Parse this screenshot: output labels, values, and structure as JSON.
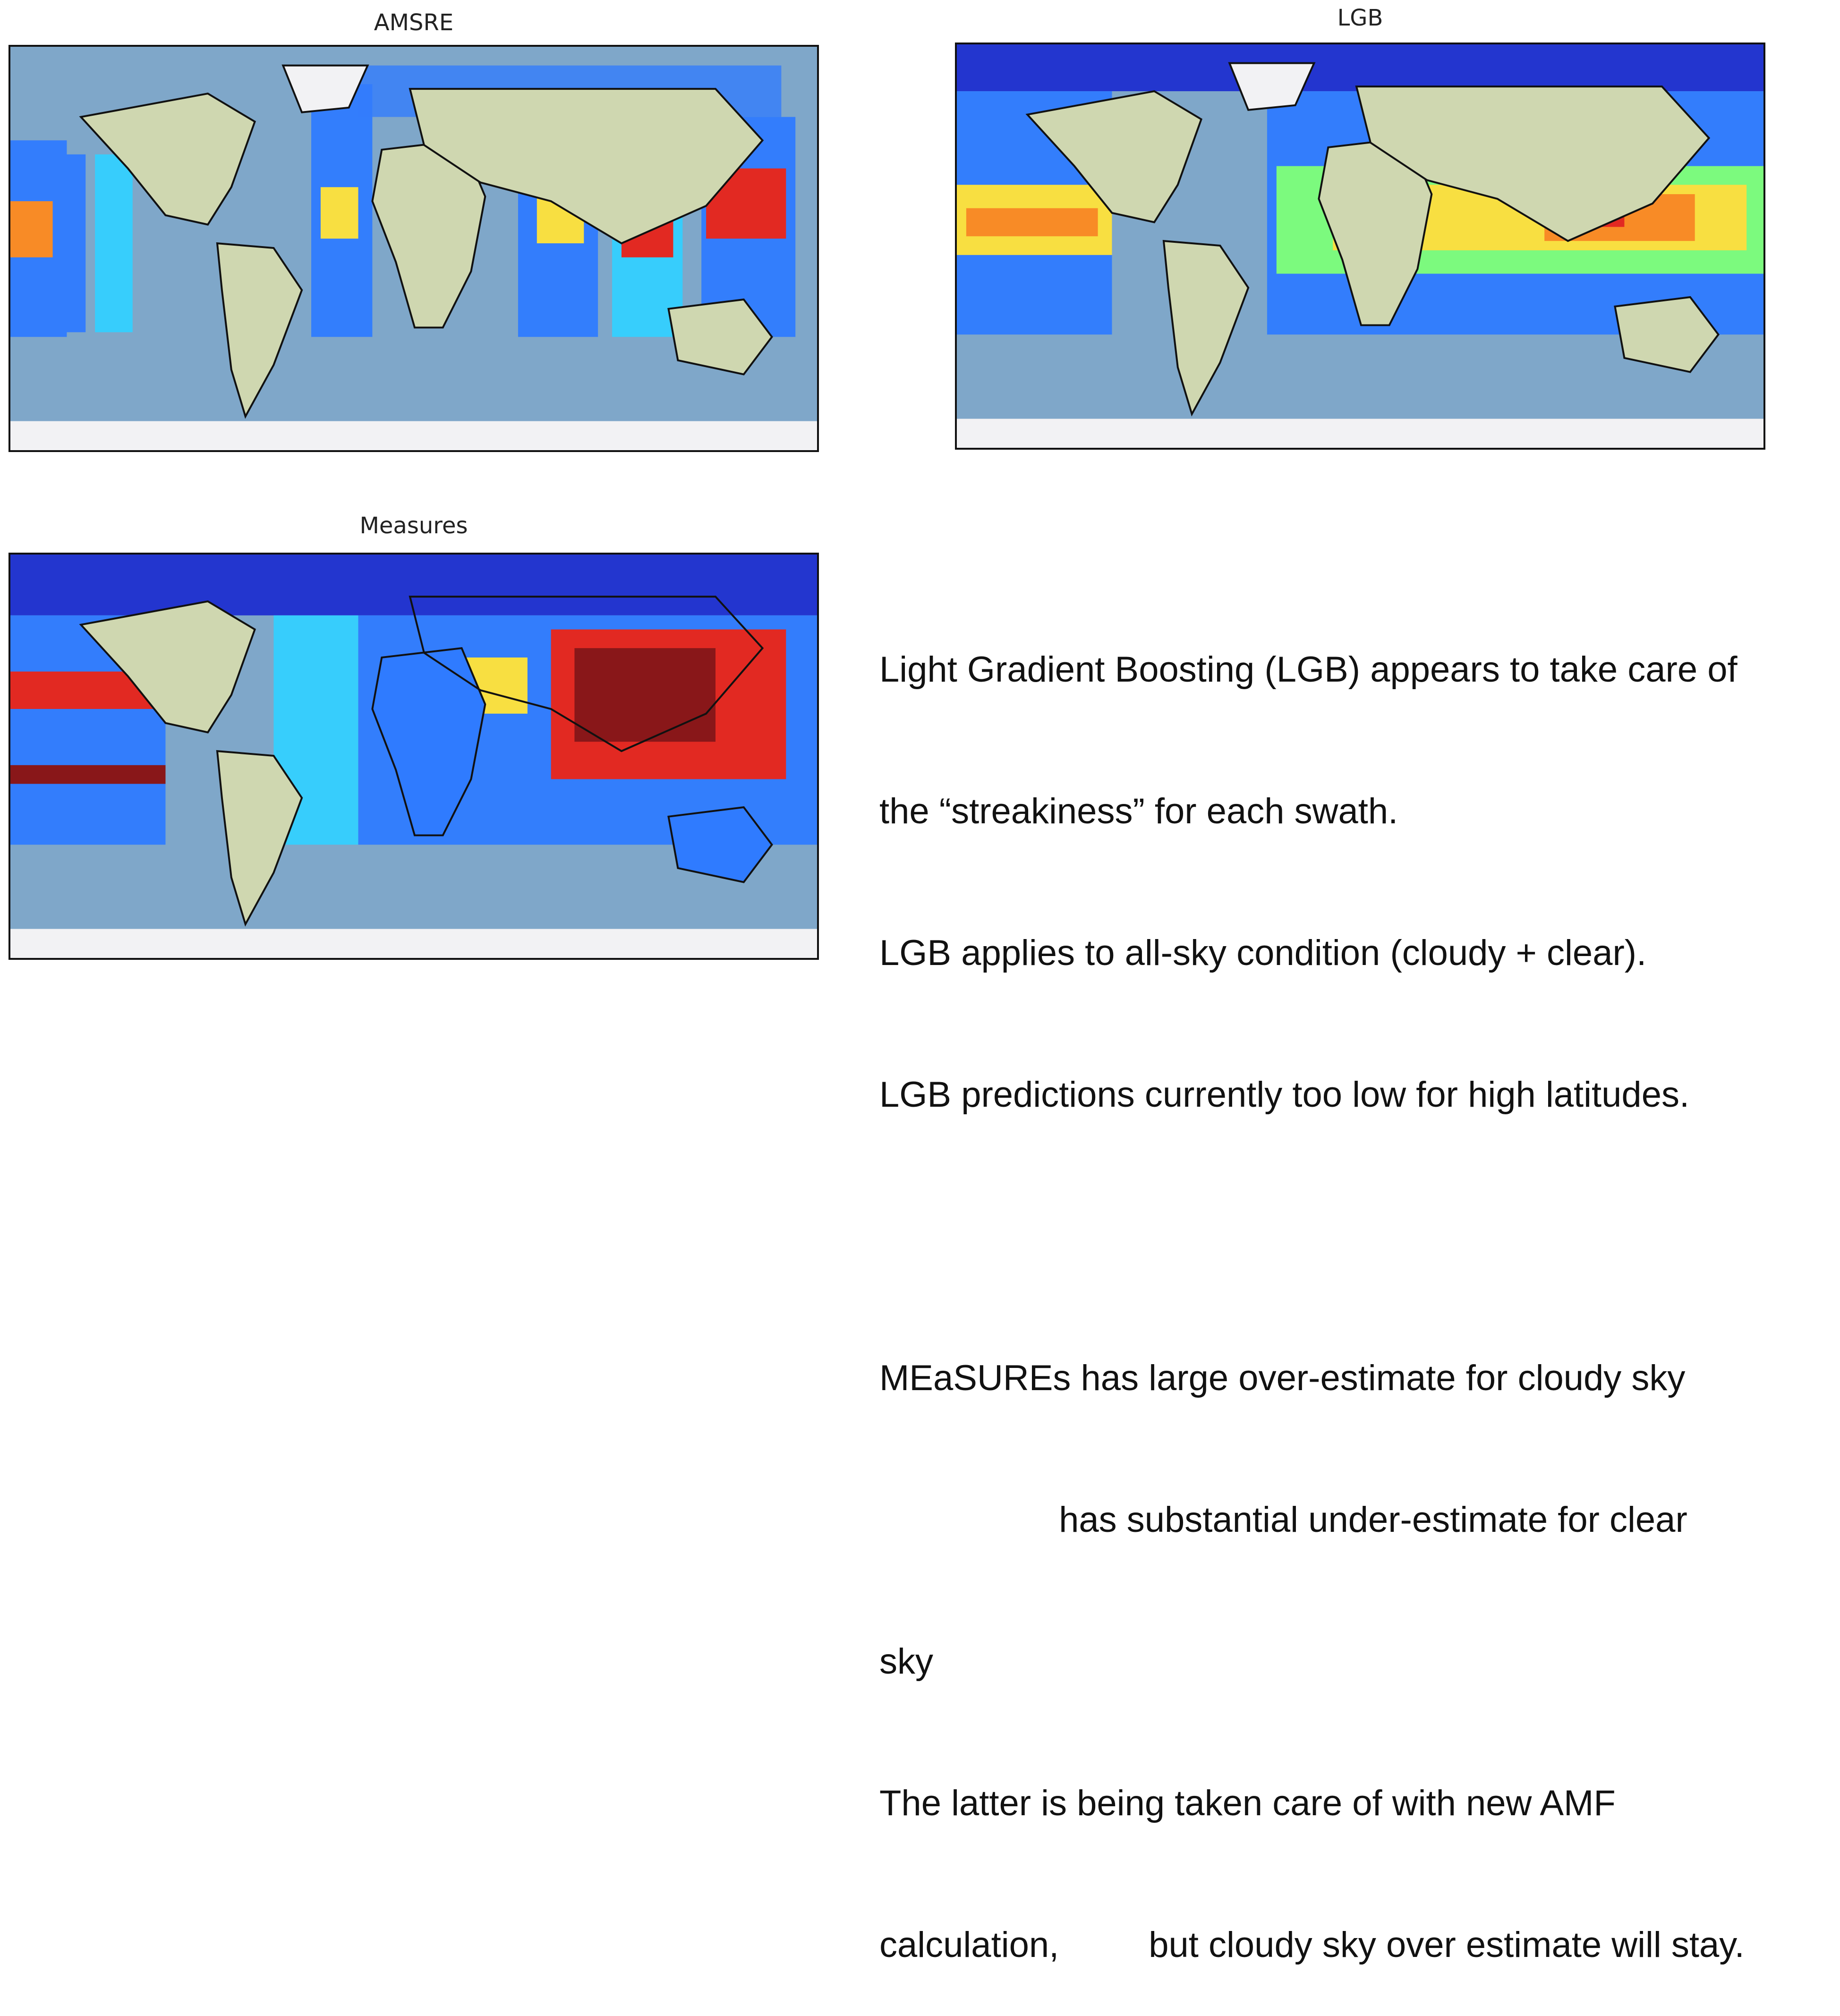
{
  "panels": [
    {
      "title": "AMSRE"
    },
    {
      "title": "LGB"
    },
    {
      "title": "Measures"
    }
  ],
  "notes": {
    "line1": "Light Gradient Boosting (LGB) appears to take care of",
    "line2": "the “streakiness” for each swath.",
    "line3": "LGB applies to all-sky condition (cloudy + clear).",
    "line4": "LGB predictions currently too low for high latitudes.",
    "line5": "",
    "line6": "MEaSUREs has large over-estimate for cloudy sky",
    "line7": "                  has substantial under-estimate for clear",
    "line8": "sky",
    "line9": "The latter is being taken care of with new AMF",
    "line10": "calculation,         but cloudy sky over estimate will stay."
  },
  "colors": {
    "ocean": "#7fa7c9",
    "land": "#cfd7b0",
    "ice": "#f2f2f4",
    "colormap": [
      "#1f2fd0",
      "#2f7bff",
      "#34d0ff",
      "#7cff7a",
      "#ffe23a",
      "#ff8a1e",
      "#e8231a",
      "#8a1010"
    ]
  },
  "icons": [
    "world-map-amsre",
    "world-map-lgb",
    "world-map-measures"
  ]
}
